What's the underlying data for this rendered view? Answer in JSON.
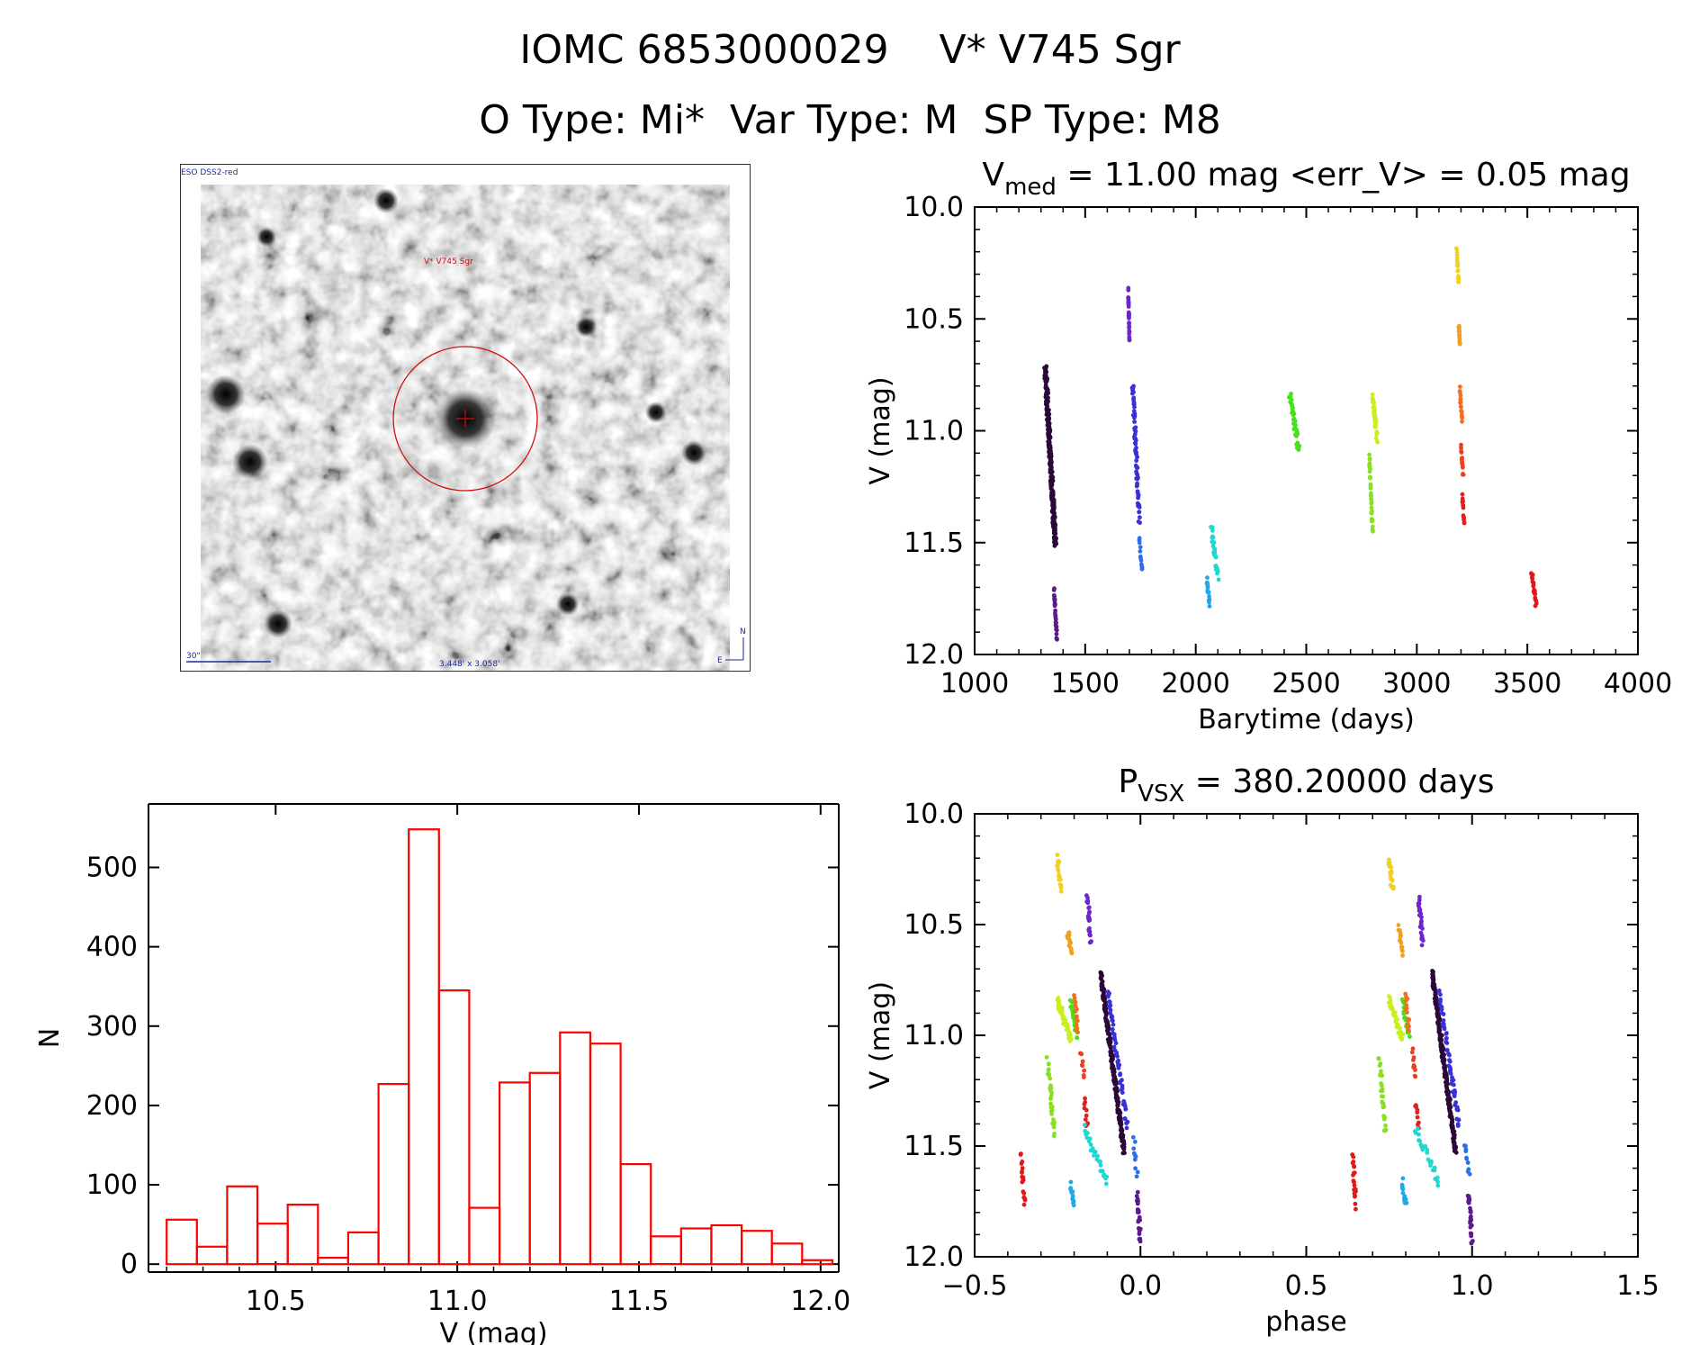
{
  "header": {
    "title": "IOMC 6853000029    V* V745 Sgr",
    "subtitle": "O Type: Mi*  Var Type: M  SP Type: M8"
  },
  "thumbnail": {
    "survey_label": "ESO DSS2-red",
    "target_label": "V* V745 Sgr",
    "scale_label": "30\"",
    "fov_label": "3.448' x 3.058'",
    "compass_n": "N",
    "compass_e": "E",
    "circle_color": "#d01010",
    "scale_color": "#1a2a9a"
  },
  "chart_data": [
    {
      "id": "lightcurve",
      "type": "scatter",
      "title_main": "V",
      "title_sub": "med",
      "title_rest": " = 11.00 mag <err_V> = 0.05 mag",
      "xlabel": "Barytime (days)",
      "ylabel": "V (mag)",
      "xlim": [
        1000,
        4000
      ],
      "ylim": [
        12.0,
        10.0
      ],
      "xticks": [
        "1000",
        "1500",
        "2000",
        "2500",
        "3000",
        "3500",
        "4000"
      ],
      "yticks": [
        "10.0",
        "10.5",
        "11.0",
        "11.5",
        "12.0"
      ],
      "series": [
        {
          "name": "season1",
          "color": "#2a0838",
          "x": [
            1320,
            1365
          ],
          "y": [
            10.72,
            11.52
          ],
          "n": 260
        },
        {
          "name": "season1b",
          "color": "#5a1a8a",
          "x": [
            1360,
            1372
          ],
          "y": [
            11.72,
            11.93
          ],
          "n": 30
        },
        {
          "name": "season2",
          "color": "#6a28c8",
          "x": [
            1695,
            1700
          ],
          "y": [
            10.38,
            10.58
          ],
          "n": 30
        },
        {
          "name": "season2b",
          "color": "#3a30d8",
          "x": [
            1715,
            1745
          ],
          "y": [
            10.8,
            11.4
          ],
          "n": 70
        },
        {
          "name": "season2c",
          "color": "#2a70e8",
          "x": [
            1745,
            1758
          ],
          "y": [
            11.48,
            11.62
          ],
          "n": 12
        },
        {
          "name": "season3",
          "color": "#20a8e8",
          "x": [
            2050,
            2062
          ],
          "y": [
            11.66,
            11.77
          ],
          "n": 15
        },
        {
          "name": "season3b",
          "color": "#20d8d0",
          "x": [
            2070,
            2100
          ],
          "y": [
            11.42,
            11.66
          ],
          "n": 30
        },
        {
          "name": "season4",
          "color": "#48e020",
          "x": [
            2425,
            2465
          ],
          "y": [
            10.84,
            11.08
          ],
          "n": 40
        },
        {
          "name": "season5",
          "color": "#88e020",
          "x": [
            2785,
            2800
          ],
          "y": [
            11.12,
            11.45
          ],
          "n": 40
        },
        {
          "name": "season5b",
          "color": "#c8f020",
          "x": [
            2800,
            2820
          ],
          "y": [
            10.84,
            11.04
          ],
          "n": 40
        },
        {
          "name": "season6",
          "color": "#f0d020",
          "x": [
            3180,
            3190
          ],
          "y": [
            10.2,
            10.34
          ],
          "n": 20
        },
        {
          "name": "season6b",
          "color": "#f0a020",
          "x": [
            3190,
            3195
          ],
          "y": [
            10.52,
            10.62
          ],
          "n": 20
        },
        {
          "name": "season6c",
          "color": "#f07020",
          "x": [
            3195,
            3205
          ],
          "y": [
            10.82,
            10.96
          ],
          "n": 20
        },
        {
          "name": "season6d",
          "color": "#e84020",
          "x": [
            3200,
            3210
          ],
          "y": [
            11.08,
            11.2
          ],
          "n": 15
        },
        {
          "name": "season6e",
          "color": "#e02020",
          "x": [
            3205,
            3215
          ],
          "y": [
            11.3,
            11.4
          ],
          "n": 15
        },
        {
          "name": "season7",
          "color": "#e01818",
          "x": [
            3520,
            3540
          ],
          "y": [
            11.63,
            11.78
          ],
          "n": 20
        }
      ]
    },
    {
      "id": "histogram",
      "type": "bar",
      "xlabel": "V (mag)",
      "ylabel": "N",
      "xlim": [
        10.15,
        12.05
      ],
      "ylim": [
        -10,
        580
      ],
      "xticks": [
        "10.5",
        "11.0",
        "11.5",
        "12.0"
      ],
      "yticks": [
        "0",
        "100",
        "200",
        "300",
        "400",
        "500"
      ],
      "bin_start": 10.2,
      "bin_width": 0.0833,
      "values": [
        56,
        22,
        98,
        51,
        75,
        8,
        40,
        227,
        548,
        345,
        71,
        229,
        241,
        292,
        278,
        126,
        35,
        45,
        49,
        42,
        26,
        5
      ],
      "color": "#ff0000"
    },
    {
      "id": "phased",
      "type": "scatter",
      "title_main": "P",
      "title_sub": "VSX",
      "title_rest": " = 380.20000 days",
      "xlabel": "phase",
      "ylabel": "V (mag)",
      "xlim": [
        -0.5,
        1.5
      ],
      "ylim": [
        12.0,
        10.0
      ],
      "xticks": [
        "−0.5",
        "0.0",
        "0.5",
        "1.0",
        "1.5"
      ],
      "yticks": [
        "10.0",
        "10.5",
        "11.0",
        "11.5",
        "12.0"
      ],
      "series": [
        {
          "name": "p1",
          "color": "#e01818",
          "x": [
            -0.36,
            -0.35
          ],
          "y": [
            11.53,
            11.77
          ],
          "n": 20
        },
        {
          "name": "p2",
          "color": "#88e020",
          "x": [
            -0.28,
            -0.26
          ],
          "y": [
            11.1,
            11.45
          ],
          "n": 30
        },
        {
          "name": "p3",
          "color": "#f0d020",
          "x": [
            -0.25,
            -0.24
          ],
          "y": [
            10.2,
            10.34
          ],
          "n": 20
        },
        {
          "name": "p4",
          "color": "#c8f020",
          "x": [
            -0.25,
            -0.21
          ],
          "y": [
            10.84,
            11.02
          ],
          "n": 40
        },
        {
          "name": "p5",
          "color": "#f0a020",
          "x": [
            -0.22,
            -0.21
          ],
          "y": [
            10.52,
            10.62
          ],
          "n": 15
        },
        {
          "name": "p6",
          "color": "#48e020",
          "x": [
            -0.21,
            -0.19
          ],
          "y": [
            10.84,
            11.0
          ],
          "n": 25
        },
        {
          "name": "p7",
          "color": "#20a8e8",
          "x": [
            -0.21,
            -0.2
          ],
          "y": [
            11.66,
            11.77
          ],
          "n": 12
        },
        {
          "name": "p8",
          "color": "#f07020",
          "x": [
            -0.2,
            -0.19
          ],
          "y": [
            10.82,
            10.98
          ],
          "n": 15
        },
        {
          "name": "p9",
          "color": "#e84020",
          "x": [
            -0.18,
            -0.17
          ],
          "y": [
            11.08,
            11.18
          ],
          "n": 10
        },
        {
          "name": "p10",
          "color": "#e02020",
          "x": [
            -0.17,
            -0.16
          ],
          "y": [
            11.3,
            11.42
          ],
          "n": 10
        },
        {
          "name": "p11",
          "color": "#20d8d0",
          "x": [
            -0.17,
            -0.1
          ],
          "y": [
            11.42,
            11.66
          ],
          "n": 25
        },
        {
          "name": "p12",
          "color": "#6a28c8",
          "x": [
            -0.16,
            -0.15
          ],
          "y": [
            10.38,
            10.58
          ],
          "n": 25
        },
        {
          "name": "p13",
          "color": "#2a0838",
          "x": [
            -0.12,
            -0.05
          ],
          "y": [
            10.72,
            11.52
          ],
          "n": 220
        },
        {
          "name": "p14",
          "color": "#3a30d8",
          "x": [
            -0.1,
            -0.04
          ],
          "y": [
            10.8,
            11.4
          ],
          "n": 60
        },
        {
          "name": "p15",
          "color": "#5a1a8a",
          "x": [
            -0.01,
            0.0
          ],
          "y": [
            11.72,
            11.93
          ],
          "n": 25
        },
        {
          "name": "p16",
          "color": "#2a70e8",
          "x": [
            -0.02,
            -0.01
          ],
          "y": [
            11.48,
            11.62
          ],
          "n": 10
        }
      ]
    }
  ]
}
